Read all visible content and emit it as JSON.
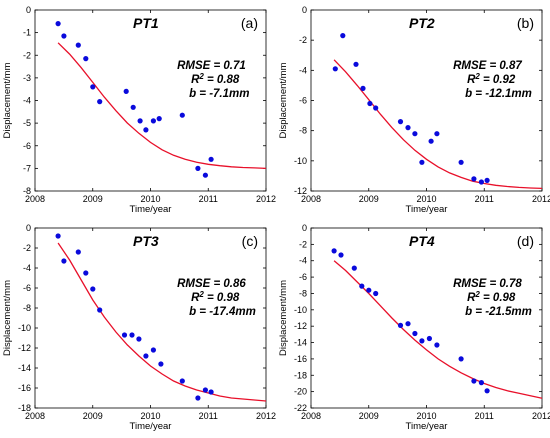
{
  "colors": {
    "points": "#0a0adc",
    "fit_curve": "#e8102a",
    "axes": "#000000"
  },
  "chart_data": [
    {
      "type": "scatter",
      "title": "PT1",
      "panel_label": "(a)",
      "xlabel": "Time/year",
      "ylabel": "Displacement/mm",
      "xlim": [
        2008,
        2012
      ],
      "ylim": [
        -8,
        0
      ],
      "xticks": [
        "2008",
        "2009",
        "2010",
        "2011",
        "2012"
      ],
      "yticks": [
        "-8",
        "-7",
        "-6",
        "-5",
        "-4",
        "-3",
        "-2",
        "-1",
        "0"
      ],
      "grid": false,
      "stats": {
        "rmse": "RMSE = 0.71",
        "r2_prefix": "R",
        "r2_sup": "2",
        "r2_value": " = 0.88",
        "b": "b  = -7.1mm"
      },
      "series": [
        {
          "kind": "points",
          "x": [
            2008.4,
            2008.5,
            2008.75,
            2008.88,
            2009.0,
            2009.12,
            2009.58,
            2009.7,
            2009.82,
            2009.92,
            2010.05,
            2010.15,
            2010.55,
            2010.82,
            2010.95,
            2011.05
          ],
          "y": [
            -0.6,
            -1.15,
            -1.55,
            -2.15,
            -3.4,
            -4.05,
            -3.6,
            -4.3,
            -4.9,
            -5.3,
            -4.9,
            -4.8,
            -4.65,
            -7.0,
            -7.3,
            -6.6
          ]
        },
        {
          "kind": "fit",
          "x": [
            2008.4,
            2008.6,
            2008.8,
            2009.0,
            2009.2,
            2009.4,
            2009.6,
            2009.8,
            2010.0,
            2010.2,
            2010.4,
            2010.6,
            2010.8,
            2011.0,
            2011.2,
            2011.4,
            2011.6,
            2011.8,
            2012.0
          ],
          "y": [
            -1.45,
            -1.95,
            -2.55,
            -3.2,
            -3.85,
            -4.45,
            -5.0,
            -5.45,
            -5.85,
            -6.18,
            -6.42,
            -6.6,
            -6.73,
            -6.82,
            -6.88,
            -6.93,
            -6.96,
            -6.98,
            -7.0
          ]
        }
      ]
    },
    {
      "type": "scatter",
      "title": "PT2",
      "panel_label": "(b)",
      "xlabel": "Time/year",
      "ylabel": "Displacement/mm",
      "xlim": [
        2008,
        2012
      ],
      "ylim": [
        -12,
        0
      ],
      "xticks": [
        "2008",
        "2009",
        "2010",
        "2011",
        "2012"
      ],
      "yticks": [
        "-12",
        "-10",
        "-8",
        "-6",
        "-4",
        "-2",
        "0"
      ],
      "grid": false,
      "stats": {
        "rmse": "RMSE = 0.87",
        "r2_prefix": "R",
        "r2_sup": "2",
        "r2_value": " = 0.92",
        "b": "b  = -12.1mm"
      },
      "series": [
        {
          "kind": "points",
          "x": [
            2008.42,
            2008.55,
            2008.78,
            2008.9,
            2009.02,
            2009.12,
            2009.55,
            2009.68,
            2009.8,
            2009.92,
            2010.08,
            2010.18,
            2010.6,
            2010.82,
            2010.95,
            2011.05
          ],
          "y": [
            -3.9,
            -1.7,
            -3.6,
            -5.2,
            -6.2,
            -6.5,
            -7.4,
            -7.8,
            -8.2,
            -10.1,
            -8.7,
            -8.2,
            -10.1,
            -11.2,
            -11.4,
            -11.3
          ]
        },
        {
          "kind": "fit",
          "x": [
            2008.4,
            2008.6,
            2008.8,
            2009.0,
            2009.2,
            2009.4,
            2009.6,
            2009.8,
            2010.0,
            2010.2,
            2010.4,
            2010.6,
            2010.8,
            2011.0,
            2011.2,
            2011.4,
            2011.6,
            2011.8,
            2012.0
          ],
          "y": [
            -3.3,
            -4.1,
            -5.0,
            -5.95,
            -6.9,
            -7.8,
            -8.6,
            -9.3,
            -9.9,
            -10.4,
            -10.8,
            -11.1,
            -11.35,
            -11.5,
            -11.62,
            -11.7,
            -11.76,
            -11.8,
            -11.83
          ]
        }
      ]
    },
    {
      "type": "scatter",
      "title": "PT3",
      "panel_label": "(c)",
      "xlabel": "Time/year",
      "ylabel": "Displacement/mm",
      "xlim": [
        2008,
        2012
      ],
      "ylim": [
        -18,
        0
      ],
      "xticks": [
        "2008",
        "2009",
        "2010",
        "2011",
        "2012"
      ],
      "yticks": [
        "-18",
        "-16",
        "-14",
        "-12",
        "-10",
        "-8",
        "-6",
        "-4",
        "-2",
        "0"
      ],
      "grid": false,
      "stats": {
        "rmse": "RMSE = 0.86",
        "r2_prefix": "R",
        "r2_sup": "2",
        "r2_value": " = 0.98",
        "b": "b  =  -17.4mm"
      },
      "series": [
        {
          "kind": "points",
          "x": [
            2008.4,
            2008.5,
            2008.75,
            2008.88,
            2009.0,
            2009.12,
            2009.55,
            2009.68,
            2009.8,
            2009.92,
            2010.05,
            2010.18,
            2010.55,
            2010.82,
            2010.95,
            2011.05
          ],
          "y": [
            -0.8,
            -3.3,
            -2.4,
            -4.5,
            -6.1,
            -8.2,
            -10.7,
            -10.7,
            -11.1,
            -12.8,
            -12.2,
            -13.6,
            -15.3,
            -17.0,
            -16.2,
            -16.4
          ]
        },
        {
          "kind": "fit",
          "x": [
            2008.4,
            2008.6,
            2008.8,
            2009.0,
            2009.2,
            2009.4,
            2009.6,
            2009.8,
            2010.0,
            2010.2,
            2010.4,
            2010.6,
            2010.8,
            2011.0,
            2011.2,
            2011.4,
            2011.6,
            2011.8,
            2012.0
          ],
          "y": [
            -1.5,
            -3.2,
            -5.2,
            -7.2,
            -8.9,
            -10.4,
            -11.7,
            -12.8,
            -13.8,
            -14.6,
            -15.3,
            -15.8,
            -16.2,
            -16.5,
            -16.8,
            -17.0,
            -17.1,
            -17.2,
            -17.3
          ]
        }
      ]
    },
    {
      "type": "scatter",
      "title": "PT4",
      "panel_label": "(d)",
      "xlabel": "Time/year",
      "ylabel": "Displacement/mm",
      "xlim": [
        2008,
        2012
      ],
      "ylim": [
        -22,
        0
      ],
      "xticks": [
        "2008",
        "2009",
        "2010",
        "2011",
        "2012"
      ],
      "yticks": [
        "-22",
        "-20",
        "-18",
        "-16",
        "-14",
        "-12",
        "-10",
        "-8",
        "-6",
        "-4",
        "-2",
        "0"
      ],
      "grid": false,
      "stats": {
        "rmse": "RMSE = 0.78",
        "r2_prefix": "R",
        "r2_sup": "2",
        "r2_value": " = 0.98",
        "b": "b  =  -21.5mm"
      },
      "series": [
        {
          "kind": "points",
          "x": [
            2008.4,
            2008.52,
            2008.75,
            2008.88,
            2009.0,
            2009.12,
            2009.55,
            2009.68,
            2009.8,
            2009.92,
            2010.05,
            2010.18,
            2010.6,
            2010.82,
            2010.95,
            2011.05
          ],
          "y": [
            -2.8,
            -3.3,
            -4.9,
            -7.1,
            -7.6,
            -8.0,
            -11.9,
            -11.7,
            -12.9,
            -13.8,
            -13.5,
            -14.3,
            -16.0,
            -18.7,
            -18.9,
            -19.9
          ]
        },
        {
          "kind": "fit",
          "x": [
            2008.4,
            2008.6,
            2008.8,
            2009.0,
            2009.2,
            2009.4,
            2009.6,
            2009.8,
            2010.0,
            2010.2,
            2010.4,
            2010.6,
            2010.8,
            2011.0,
            2011.2,
            2011.4,
            2011.6,
            2011.8,
            2012.0
          ],
          "y": [
            -4.0,
            -5.2,
            -6.6,
            -8.0,
            -9.5,
            -11.0,
            -12.4,
            -13.7,
            -14.9,
            -16.0,
            -16.9,
            -17.7,
            -18.4,
            -19.0,
            -19.5,
            -19.9,
            -20.2,
            -20.5,
            -20.8
          ]
        }
      ]
    }
  ]
}
